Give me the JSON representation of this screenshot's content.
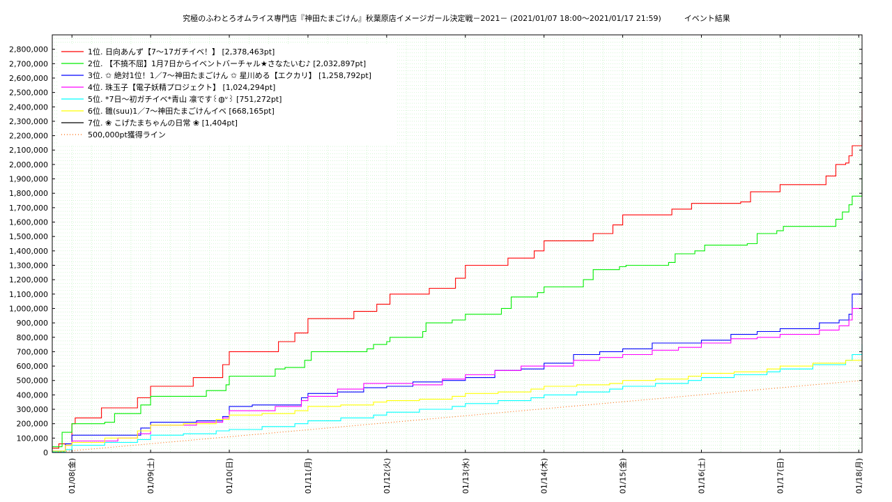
{
  "chart_data": {
    "type": "line",
    "title": "究極のふわとろオムライス専門店『神田たまごけん』秋葉原店イメージガール決定戦－2021－ (2021/01/07 18:00～2021/01/17 21:59)　　　イベント結果",
    "xlabel": "",
    "ylabel": "",
    "ylim": [
      0,
      2900000
    ],
    "xlim": [
      "2021-01-07 18:00",
      "2021-01-18 01:00"
    ],
    "y_ticks": [
      "0",
      "100,000",
      "200,000",
      "300,000",
      "400,000",
      "500,000",
      "600,000",
      "700,000",
      "800,000",
      "900,000",
      "1,000,000",
      "1,100,000",
      "1,200,000",
      "1,300,000",
      "1,400,000",
      "1,500,000",
      "1,600,000",
      "1,700,000",
      "1,800,000",
      "1,900,000",
      "2,000,000",
      "2,100,000",
      "2,200,000",
      "2,300,000",
      "2,400,000",
      "2,500,000",
      "2,600,000",
      "2,700,000",
      "2,800,000"
    ],
    "y_tick_values": [
      0,
      100000,
      200000,
      300000,
      400000,
      500000,
      600000,
      700000,
      800000,
      900000,
      1000000,
      1100000,
      1200000,
      1300000,
      1400000,
      1500000,
      1600000,
      1700000,
      1800000,
      1900000,
      2000000,
      2100000,
      2200000,
      2300000,
      2400000,
      2500000,
      2600000,
      2700000,
      2800000
    ],
    "x_ticks": [
      "01/08(金)",
      "01/09(土)",
      "01/10(日)",
      "01/11(月)",
      "01/12(火)",
      "01/13(水)",
      "01/14(木)",
      "01/15(金)",
      "01/16(土)",
      "01/17(日)",
      "01/18(月)"
    ],
    "x_tick_values": [
      "2021-01-08 00:00",
      "2021-01-09 00:00",
      "2021-01-10 00:00",
      "2021-01-11 00:00",
      "2021-01-12 00:00",
      "2021-01-13 00:00",
      "2021-01-14 00:00",
      "2021-01-15 00:00",
      "2021-01-16 00:00",
      "2021-01-17 00:00",
      "2021-01-18 00:00"
    ],
    "grid": true,
    "legend_position": "top-left",
    "series": [
      {
        "name": "1位. 日向あんず【7～17ガチイベ！】 [2,378,463pt]",
        "color": "#ff0000",
        "x": [
          "2021-01-07 18:00",
          "2021-01-07 20:00",
          "2021-01-08 00:00",
          "2021-01-08 01:00",
          "2021-01-08 09:00",
          "2021-01-08 10:00",
          "2021-01-08 20:00",
          "2021-01-09 00:00",
          "2021-01-09 12:00",
          "2021-01-09 13:00",
          "2021-01-09 22:00",
          "2021-01-10 00:00",
          "2021-01-10 14:00",
          "2021-01-10 15:00",
          "2021-01-10 20:00",
          "2021-01-11 00:00",
          "2021-01-11 13:00",
          "2021-01-11 14:00",
          "2021-01-11 21:00",
          "2021-01-12 01:00",
          "2021-01-12 08:00",
          "2021-01-12 13:00",
          "2021-01-12 21:00",
          "2021-01-13 00:00",
          "2021-01-13 09:00",
          "2021-01-13 13:00",
          "2021-01-13 21:00",
          "2021-01-14 00:00",
          "2021-01-14 12:00",
          "2021-01-14 15:00",
          "2021-01-14 21:00",
          "2021-01-15 00:00",
          "2021-01-15 12:00",
          "2021-01-15 15:00",
          "2021-01-15 21:00",
          "2021-01-16 00:00",
          "2021-01-16 12:00",
          "2021-01-16 15:00",
          "2021-01-16 21:00",
          "2021-01-17 00:00",
          "2021-01-17 14:00",
          "2021-01-17 17:00",
          "2021-01-17 20:00",
          "2021-01-17 21:00",
          "2021-01-17 22:00",
          "2021-01-18 01:00"
        ],
        "y": [
          30000,
          60000,
          200000,
          240000,
          310000,
          310000,
          380000,
          460000,
          460000,
          520000,
          610000,
          700000,
          700000,
          770000,
          830000,
          930000,
          930000,
          980000,
          1030000,
          1100000,
          1100000,
          1140000,
          1210000,
          1300000,
          1300000,
          1350000,
          1400000,
          1470000,
          1470000,
          1520000,
          1580000,
          1650000,
          1650000,
          1690000,
          1730000,
          1730000,
          1740000,
          1810000,
          1810000,
          1860000,
          1920000,
          2000000,
          2010000,
          2060000,
          2130000,
          2380000
        ]
      },
      {
        "name": "2位. 【不撓不屈】1月7日からイベントバーチャル★さなたいむ♪ [2,032,897pt]",
        "color": "#00ee00",
        "x": [
          "2021-01-07 18:00",
          "2021-01-07 21:00",
          "2021-01-08 00:00",
          "2021-01-08 01:00",
          "2021-01-08 10:00",
          "2021-01-08 13:00",
          "2021-01-08 21:00",
          "2021-01-09 00:00",
          "2021-01-09 15:00",
          "2021-01-09 17:00",
          "2021-01-09 23:00",
          "2021-01-10 00:00",
          "2021-01-10 14:00",
          "2021-01-10 17:00",
          "2021-01-10 23:00",
          "2021-01-11 01:00",
          "2021-01-11 18:00",
          "2021-01-11 20:00",
          "2021-01-12 00:00",
          "2021-01-12 01:00",
          "2021-01-12 11:00",
          "2021-01-12 12:00",
          "2021-01-12 20:00",
          "2021-01-13 00:00",
          "2021-01-13 11:00",
          "2021-01-13 14:00",
          "2021-01-13 22:00",
          "2021-01-14 00:00",
          "2021-01-14 12:00",
          "2021-01-14 15:00",
          "2021-01-14 23:00",
          "2021-01-15 01:00",
          "2021-01-15 14:00",
          "2021-01-15 16:00",
          "2021-01-15 22:00",
          "2021-01-16 01:00",
          "2021-01-16 14:00",
          "2021-01-16 17:00",
          "2021-01-16 23:00",
          "2021-01-17 01:00",
          "2021-01-17 17:00",
          "2021-01-17 19:00",
          "2021-01-17 21:00",
          "2021-01-17 22:00",
          "2021-01-18 01:00"
        ],
        "y": [
          40000,
          140000,
          200000,
          200000,
          210000,
          270000,
          330000,
          390000,
          390000,
          430000,
          470000,
          530000,
          580000,
          590000,
          640000,
          700000,
          720000,
          750000,
          770000,
          800000,
          840000,
          900000,
          920000,
          960000,
          1000000,
          1080000,
          1110000,
          1150000,
          1200000,
          1270000,
          1290000,
          1300000,
          1320000,
          1380000,
          1400000,
          1440000,
          1450000,
          1520000,
          1540000,
          1570000,
          1620000,
          1670000,
          1720000,
          1780000,
          2030000
        ]
      },
      {
        "name": "3位. ✩ 絶対1位！1／7～神田たまごけん ✩ 星川める【エクカリ】 [1,258,792pt]",
        "color": "#0000ff",
        "x": [
          "2021-01-07 18:00",
          "2021-01-07 22:00",
          "2021-01-08 00:00",
          "2021-01-08 06:00",
          "2021-01-08 14:00",
          "2021-01-08 21:00",
          "2021-01-09 00:00",
          "2021-01-09 06:00",
          "2021-01-09 14:00",
          "2021-01-09 22:00",
          "2021-01-10 00:00",
          "2021-01-10 07:00",
          "2021-01-10 14:00",
          "2021-01-10 22:00",
          "2021-01-11 00:00",
          "2021-01-11 09:00",
          "2021-01-11 17:00",
          "2021-01-12 00:00",
          "2021-01-12 08:00",
          "2021-01-12 17:00",
          "2021-01-13 00:00",
          "2021-01-13 09:00",
          "2021-01-13 17:00",
          "2021-01-14 00:00",
          "2021-01-14 09:00",
          "2021-01-14 17:00",
          "2021-01-15 00:00",
          "2021-01-15 09:00",
          "2021-01-15 17:00",
          "2021-01-16 00:00",
          "2021-01-16 09:00",
          "2021-01-16 17:00",
          "2021-01-17 00:00",
          "2021-01-17 12:00",
          "2021-01-17 18:00",
          "2021-01-17 21:00",
          "2021-01-17 22:00",
          "2021-01-18 01:00"
        ],
        "y": [
          10000,
          60000,
          120000,
          120000,
          120000,
          170000,
          210000,
          210000,
          220000,
          250000,
          320000,
          330000,
          330000,
          380000,
          410000,
          420000,
          450000,
          460000,
          490000,
          500000,
          520000,
          570000,
          580000,
          620000,
          680000,
          700000,
          720000,
          760000,
          760000,
          780000,
          820000,
          840000,
          860000,
          900000,
          920000,
          960000,
          1100000,
          1260000
        ]
      },
      {
        "name": "4位. 珠玉子【電子妖精プロジェクト】 [1,024,294pt]",
        "color": "#ff00ff",
        "x": [
          "2021-01-07 18:00",
          "2021-01-07 22:00",
          "2021-01-08 00:00",
          "2021-01-08 06:00",
          "2021-01-08 14:00",
          "2021-01-08 20:00",
          "2021-01-09 00:00",
          "2021-01-09 06:00",
          "2021-01-09 14:00",
          "2021-01-09 22:00",
          "2021-01-10 00:00",
          "2021-01-10 07:00",
          "2021-01-10 14:00",
          "2021-01-10 22:00",
          "2021-01-11 00:00",
          "2021-01-11 09:00",
          "2021-01-11 17:00",
          "2021-01-12 00:00",
          "2021-01-12 08:00",
          "2021-01-12 17:00",
          "2021-01-13 00:00",
          "2021-01-13 09:00",
          "2021-01-13 17:00",
          "2021-01-14 00:00",
          "2021-01-14 09:00",
          "2021-01-14 17:00",
          "2021-01-15 00:00",
          "2021-01-15 09:00",
          "2021-01-15 17:00",
          "2021-01-16 00:00",
          "2021-01-16 09:00",
          "2021-01-16 17:00",
          "2021-01-17 00:00",
          "2021-01-17 12:00",
          "2021-01-17 18:00",
          "2021-01-17 21:00",
          "2021-01-17 22:00",
          "2021-01-18 01:00"
        ],
        "y": [
          5000,
          50000,
          80000,
          80000,
          100000,
          130000,
          190000,
          190000,
          210000,
          240000,
          290000,
          290000,
          320000,
          360000,
          390000,
          440000,
          480000,
          480000,
          470000,
          510000,
          540000,
          570000,
          600000,
          600000,
          640000,
          660000,
          680000,
          710000,
          730000,
          760000,
          790000,
          800000,
          820000,
          850000,
          880000,
          920000,
          1000000,
          1024000
        ]
      },
      {
        "name": "5位. *7日～初ガチイベ*青山 凛です꒰◍ᐡ꒱ [751,272pt]",
        "color": "#00ffff",
        "x": [
          "2021-01-07 18:00",
          "2021-01-07 22:00",
          "2021-01-08 00:00",
          "2021-01-08 10:00",
          "2021-01-08 20:00",
          "2021-01-09 00:00",
          "2021-01-09 10:00",
          "2021-01-09 20:00",
          "2021-01-10 00:00",
          "2021-01-10 10:00",
          "2021-01-10 20:00",
          "2021-01-11 00:00",
          "2021-01-11 10:00",
          "2021-01-11 20:00",
          "2021-01-12 00:00",
          "2021-01-12 10:00",
          "2021-01-12 20:00",
          "2021-01-13 00:00",
          "2021-01-13 10:00",
          "2021-01-13 20:00",
          "2021-01-14 00:00",
          "2021-01-14 10:00",
          "2021-01-14 20:00",
          "2021-01-15 00:00",
          "2021-01-15 10:00",
          "2021-01-15 20:00",
          "2021-01-16 00:00",
          "2021-01-16 10:00",
          "2021-01-16 20:00",
          "2021-01-17 00:00",
          "2021-01-17 10:00",
          "2021-01-17 20:00",
          "2021-01-17 22:00",
          "2021-01-18 01:00"
        ],
        "y": [
          5000,
          20000,
          50000,
          70000,
          90000,
          120000,
          130000,
          150000,
          160000,
          180000,
          200000,
          220000,
          240000,
          260000,
          280000,
          300000,
          320000,
          340000,
          360000,
          380000,
          400000,
          420000,
          440000,
          460000,
          480000,
          500000,
          520000,
          540000,
          560000,
          580000,
          610000,
          640000,
          680000,
          750000
        ]
      },
      {
        "name": "6位. 雛(suu)1／7～神田たまごけんイベ [668,165pt]",
        "color": "#ffff00",
        "x": [
          "2021-01-07 18:00",
          "2021-01-07 22:00",
          "2021-01-08 00:00",
          "2021-01-08 10:00",
          "2021-01-08 20:00",
          "2021-01-09 00:00",
          "2021-01-09 10:00",
          "2021-01-09 20:00",
          "2021-01-10 00:00",
          "2021-01-10 10:00",
          "2021-01-10 20:00",
          "2021-01-11 00:00",
          "2021-01-11 10:00",
          "2021-01-11 20:00",
          "2021-01-12 00:00",
          "2021-01-12 10:00",
          "2021-01-12 20:00",
          "2021-01-13 00:00",
          "2021-01-13 10:00",
          "2021-01-13 20:00",
          "2021-01-14 00:00",
          "2021-01-14 10:00",
          "2021-01-14 20:00",
          "2021-01-15 00:00",
          "2021-01-15 10:00",
          "2021-01-15 20:00",
          "2021-01-16 00:00",
          "2021-01-16 10:00",
          "2021-01-16 20:00",
          "2021-01-17 00:00",
          "2021-01-17 10:00",
          "2021-01-17 20:00",
          "2021-01-18 01:00"
        ],
        "y": [
          10000,
          50000,
          70000,
          100000,
          150000,
          190000,
          200000,
          230000,
          260000,
          270000,
          290000,
          320000,
          330000,
          350000,
          360000,
          370000,
          390000,
          410000,
          420000,
          440000,
          460000,
          470000,
          480000,
          500000,
          510000,
          530000,
          550000,
          560000,
          580000,
          600000,
          620000,
          640000,
          668000
        ]
      },
      {
        "name": "7位. ❀ こげたまちゃんの日常 ❀ [1,404pt]",
        "color": "#000000",
        "x": [
          "2021-01-07 18:00",
          "2021-01-18 01:00"
        ],
        "y": [
          0,
          1404
        ]
      },
      {
        "name": "500,000pt獲得ライン",
        "color": "#ff6600",
        "dashed": true,
        "x": [
          "2021-01-07 18:00",
          "2021-01-18 01:00"
        ],
        "y": [
          0,
          500000
        ]
      }
    ]
  }
}
